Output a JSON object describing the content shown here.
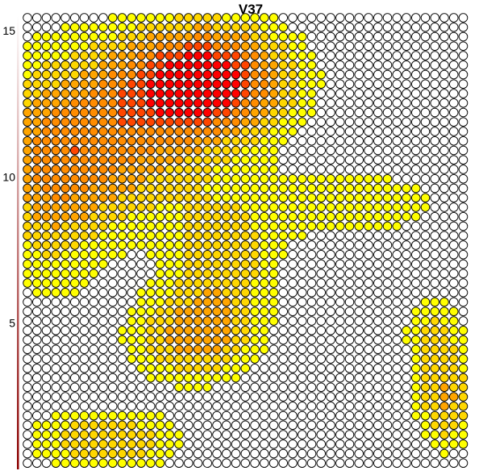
{
  "chart_data": {
    "type": "heatmap",
    "title": "V37",
    "xlabel": "",
    "ylabel": "",
    "ylim": [
      0,
      15.5
    ],
    "y_ticks": [
      {
        "value": 5,
        "label": "5"
      },
      {
        "value": 10,
        "label": "10"
      },
      {
        "value": 15,
        "label": "15"
      }
    ],
    "grid_shape": {
      "columns": 47,
      "rows": 48
    },
    "colors": {
      "white": "#ffffff",
      "yellow": "#ffff00",
      "gold": "#ffd700",
      "orange": "#ffa500",
      "dark_orange": "#ff8c00",
      "orange_red": "#ff4500",
      "red": "#ff0000",
      "outline": "#000000",
      "axis_gradient_top": "#ffffff",
      "axis_gradient_bottom": "#8b0000"
    },
    "level_scale": [
      "white",
      "yellow",
      "gold",
      "orange",
      "dark_orange",
      "orange_red",
      "red"
    ],
    "intensity_components": [
      {
        "cx": 0.4,
        "cy": 0.14,
        "sx": 0.14,
        "sy": 0.09,
        "amp": 7.0
      },
      {
        "cx": 0.2,
        "cy": 0.3,
        "sx": 0.16,
        "sy": 0.12,
        "amp": 3.2
      },
      {
        "cx": 0.45,
        "cy": 0.55,
        "sx": 0.09,
        "sy": 0.1,
        "amp": 2.6
      },
      {
        "cx": 0.38,
        "cy": 0.72,
        "sx": 0.1,
        "sy": 0.07,
        "amp": 3.4
      },
      {
        "cx": 0.18,
        "cy": 0.95,
        "sx": 0.12,
        "sy": 0.05,
        "amp": 3.0
      },
      {
        "cx": 0.96,
        "cy": 0.86,
        "sx": 0.05,
        "sy": 0.08,
        "amp": 3.2
      },
      {
        "cx": 0.93,
        "cy": 0.7,
        "sx": 0.05,
        "sy": 0.06,
        "amp": 2.0
      },
      {
        "cx": 0.05,
        "cy": 0.35,
        "sx": 0.1,
        "sy": 0.2,
        "amp": 2.6
      },
      {
        "cx": 0.75,
        "cy": 0.42,
        "sx": 0.16,
        "sy": 0.06,
        "amp": 1.8
      }
    ]
  }
}
